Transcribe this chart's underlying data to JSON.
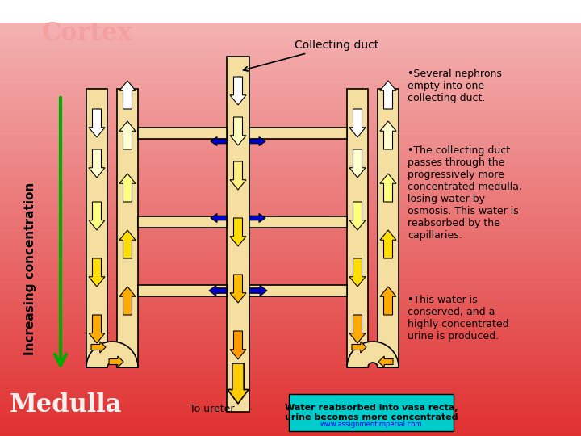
{
  "bg_top_color": "#f5b8b8",
  "bg_bottom_color": "#e03030",
  "title_cortex": "Cortex",
  "title_medulla": "Medulla",
  "label_increasing": "Increasing concentration",
  "label_collecting_duct": "Collecting duct",
  "label_to_ureter": "To ureter",
  "label_water": "Water reabsorbed into vasa recta,\nurine becomes more concentrated",
  "label_website": "www.assignmentimperial.com",
  "bullet1": "•Several nephrons\nempty into one\ncollecting duct.",
  "bullet2": "•The collecting duct\npasses through the\nprogressively more\nconcentrated medulla,\nlosing water by\nosmosis. This water is\nreabsorbed by the\ncapillaries.",
  "bullet3": "•This water is\nconserved, and a\nhighly concentrated\nurine is produced.",
  "cyan_box_color": "#00cccc",
  "green_arrow_color": "#00aa00",
  "blue_arrow_color": "#0000cc",
  "white_arrow_color": "#ffffff",
  "yellow_light": "#ffffe0",
  "yellow_mid": "#ffdd00",
  "yellow_dark": "#ffaa00",
  "orange_dark": "#ff8800",
  "nephron_fill": "#f5dfa0",
  "collecting_duct_fill": "#f5dfa0"
}
